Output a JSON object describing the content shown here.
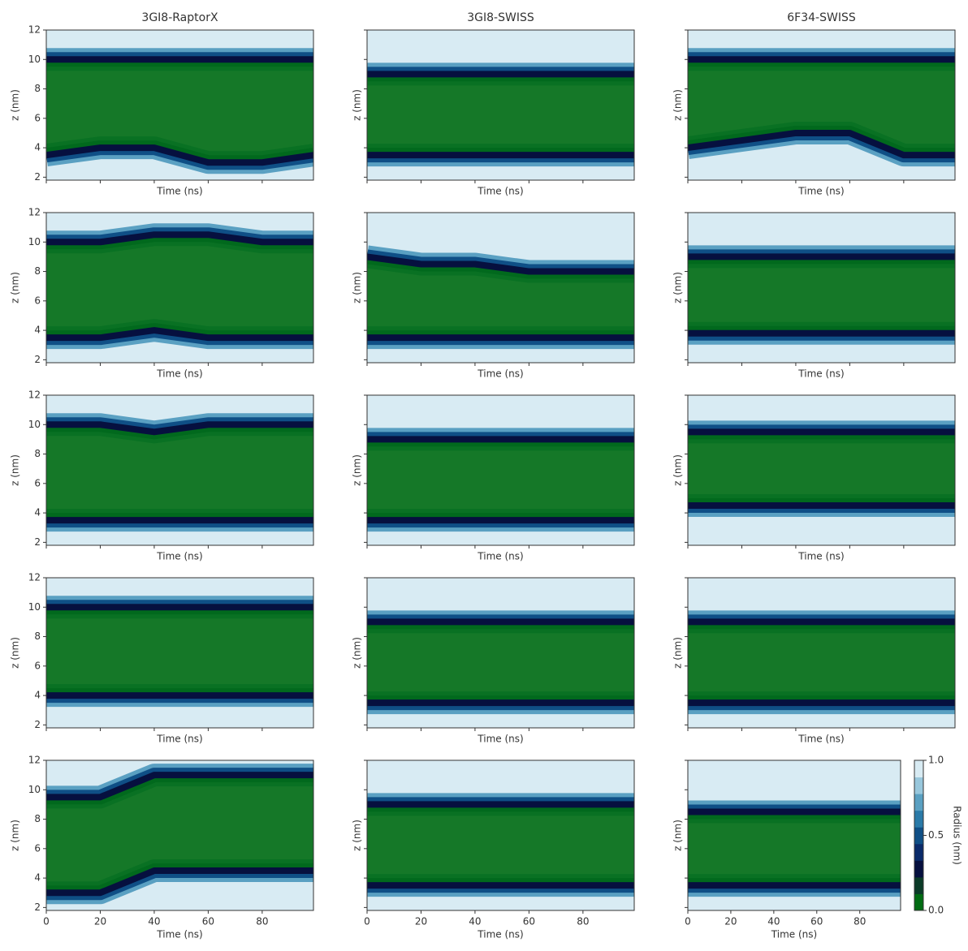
{
  "chart_data": [
    {
      "type": "contour",
      "title": "3GI8-RaptorX",
      "xlabel": "Time (ns)",
      "ylabel": "z (nm)",
      "x": [
        0,
        20,
        40,
        60,
        80,
        99
      ],
      "z_lower": [
        3.5,
        4,
        4,
        3,
        3,
        3.5
      ],
      "z_upper": [
        10,
        10,
        10,
        10,
        10,
        10
      ],
      "xlim": [
        0,
        99
      ],
      "ylim": [
        1.8,
        12
      ],
      "xticks": [
        0,
        20,
        40,
        60,
        80
      ],
      "yticks": [
        2,
        4,
        6,
        8,
        10,
        12
      ]
    },
    {
      "type": "contour",
      "title": "3GI8-SWISS",
      "xlabel": "Time (ns)",
      "ylabel": "z (nm)",
      "x": [
        0,
        20,
        40,
        60,
        80,
        99
      ],
      "z_lower": [
        3.5,
        3.5,
        3.5,
        3.5,
        3.5,
        3.5
      ],
      "z_upper": [
        9,
        9,
        9,
        9,
        9,
        9
      ],
      "xlim": [
        0,
        99
      ],
      "ylim": [
        1.8,
        12
      ],
      "xticks": [
        0,
        20,
        40,
        60,
        80
      ],
      "yticks": [
        2,
        4,
        6,
        8,
        10,
        12
      ]
    },
    {
      "type": "contour",
      "title": "6F34-SWISS",
      "xlabel": "Time (ns)",
      "ylabel": "z (nm)",
      "x": [
        0,
        20,
        40,
        60,
        80,
        99
      ],
      "z_lower": [
        4,
        4.5,
        5,
        5,
        3.5,
        3.5
      ],
      "z_upper": [
        10,
        10,
        10,
        10,
        10,
        10
      ],
      "xlim": [
        0,
        99
      ],
      "ylim": [
        1.8,
        12
      ],
      "xticks": [
        0,
        20,
        40,
        60,
        80
      ],
      "yticks": [
        2,
        4,
        6,
        8,
        10,
        12
      ]
    },
    {
      "type": "contour",
      "xlabel": "Time (ns)",
      "ylabel": "z (nm)",
      "x": [
        0,
        20,
        40,
        60,
        80,
        99
      ],
      "z_lower": [
        3.5,
        3.5,
        4,
        3.5,
        3.5,
        3.5
      ],
      "z_upper": [
        10,
        10,
        10.5,
        10.5,
        10,
        10
      ],
      "xlim": [
        0,
        99
      ],
      "ylim": [
        1.8,
        12
      ],
      "xticks": [
        0,
        20,
        40,
        60,
        80
      ],
      "yticks": [
        2,
        4,
        6,
        8,
        10,
        12
      ]
    },
    {
      "type": "contour",
      "xlabel": "Time (ns)",
      "ylabel": "z (nm)",
      "x": [
        0,
        20,
        40,
        60,
        80,
        99
      ],
      "z_lower": [
        3.5,
        3.5,
        3.5,
        3.5,
        3.5,
        3.5
      ],
      "z_upper": [
        9,
        8.5,
        8.5,
        8,
        8,
        8
      ],
      "xlim": [
        0,
        99
      ],
      "ylim": [
        1.8,
        12
      ],
      "xticks": [
        0,
        20,
        40,
        60,
        80
      ],
      "yticks": [
        2,
        4,
        6,
        8,
        10,
        12
      ]
    },
    {
      "type": "contour",
      "xlabel": "Time (ns)",
      "ylabel": "z (nm)",
      "x": [
        0,
        20,
        40,
        60,
        80,
        99
      ],
      "z_lower": [
        3.8,
        3.8,
        3.8,
        3.8,
        3.8,
        3.8
      ],
      "z_upper": [
        9,
        9,
        9,
        9,
        9,
        9
      ],
      "xlim": [
        0,
        99
      ],
      "ylim": [
        1.8,
        12
      ],
      "xticks": [
        0,
        20,
        40,
        60,
        80
      ],
      "yticks": [
        2,
        4,
        6,
        8,
        10,
        12
      ]
    },
    {
      "type": "contour",
      "xlabel": "Time (ns)",
      "ylabel": "z (nm)",
      "x": [
        0,
        20,
        40,
        60,
        80,
        99
      ],
      "z_lower": [
        3.5,
        3.5,
        3.5,
        3.5,
        3.5,
        3.5
      ],
      "z_upper": [
        10,
        10,
        9.5,
        10,
        10,
        10
      ],
      "xlim": [
        0,
        99
      ],
      "ylim": [
        1.8,
        12
      ],
      "xticks": [
        0,
        20,
        40,
        60,
        80
      ],
      "yticks": [
        2,
        4,
        6,
        8,
        10,
        12
      ]
    },
    {
      "type": "contour",
      "xlabel": "Time (ns)",
      "ylabel": "z (nm)",
      "x": [
        0,
        20,
        40,
        60,
        80,
        99
      ],
      "z_lower": [
        3.5,
        3.5,
        3.5,
        3.5,
        3.5,
        3.5
      ],
      "z_upper": [
        9,
        9,
        9,
        9,
        9,
        9
      ],
      "xlim": [
        0,
        99
      ],
      "ylim": [
        1.8,
        12
      ],
      "xticks": [
        0,
        20,
        40,
        60,
        80
      ],
      "yticks": [
        2,
        4,
        6,
        8,
        10,
        12
      ]
    },
    {
      "type": "contour",
      "xlabel": "Time (ns)",
      "ylabel": "z (nm)",
      "x": [
        0,
        20,
        40,
        60,
        80,
        99
      ],
      "z_lower": [
        4.5,
        4.5,
        4.5,
        4.5,
        4.5,
        4.5
      ],
      "z_upper": [
        9.5,
        9.5,
        9.5,
        9.5,
        9.5,
        9.5
      ],
      "xlim": [
        0,
        99
      ],
      "ylim": [
        1.8,
        12
      ],
      "xticks": [
        0,
        20,
        40,
        60,
        80
      ],
      "yticks": [
        2,
        4,
        6,
        8,
        10,
        12
      ]
    },
    {
      "type": "contour",
      "xlabel": "Time (ns)",
      "ylabel": "z (nm)",
      "x": [
        0,
        20,
        40,
        60,
        80,
        99
      ],
      "z_lower": [
        4,
        4,
        4,
        4,
        4,
        4
      ],
      "z_upper": [
        10,
        10,
        10,
        10,
        10,
        10
      ],
      "xlim": [
        0,
        99
      ],
      "ylim": [
        1.8,
        12
      ],
      "xticks": [
        0,
        20,
        40,
        60,
        80
      ],
      "yticks": [
        2,
        4,
        6,
        8,
        10,
        12
      ]
    },
    {
      "type": "contour",
      "xlabel": "Time (ns)",
      "ylabel": "z (nm)",
      "x": [
        0,
        20,
        40,
        60,
        80,
        99
      ],
      "z_lower": [
        3.5,
        3.5,
        3.5,
        3.5,
        3.5,
        3.5
      ],
      "z_upper": [
        9,
        9,
        9,
        9,
        9,
        9
      ],
      "xlim": [
        0,
        99
      ],
      "ylim": [
        1.8,
        12
      ],
      "xticks": [
        0,
        20,
        40,
        60,
        80
      ],
      "yticks": [
        2,
        4,
        6,
        8,
        10,
        12
      ]
    },
    {
      "type": "contour",
      "xlabel": "Time (ns)",
      "ylabel": "z (nm)",
      "x": [
        0,
        20,
        40,
        60,
        80,
        99
      ],
      "z_lower": [
        3.5,
        3.5,
        3.5,
        3.5,
        3.5,
        3.5
      ],
      "z_upper": [
        9,
        9,
        9,
        9,
        9,
        9
      ],
      "xlim": [
        0,
        99
      ],
      "ylim": [
        1.8,
        12
      ],
      "xticks": [
        0,
        20,
        40,
        60,
        80
      ],
      "yticks": [
        2,
        4,
        6,
        8,
        10,
        12
      ]
    },
    {
      "type": "contour",
      "xlabel": "Time (ns)",
      "ylabel": "z (nm)",
      "x": [
        0,
        20,
        40,
        60,
        80,
        99
      ],
      "z_lower": [
        3,
        3,
        4.5,
        4.5,
        4.5,
        4.5
      ],
      "z_upper": [
        9.5,
        9.5,
        11,
        11,
        11,
        11
      ],
      "xlim": [
        0,
        99
      ],
      "ylim": [
        1.8,
        12
      ],
      "xticks": [
        0,
        20,
        40,
        60,
        80
      ],
      "yticks": [
        2,
        4,
        6,
        8,
        10,
        12
      ]
    },
    {
      "type": "contour",
      "xlabel": "Time (ns)",
      "ylabel": "z (nm)",
      "x": [
        0,
        20,
        40,
        60,
        80,
        99
      ],
      "z_lower": [
        3.5,
        3.5,
        3.5,
        3.5,
        3.5,
        3.5
      ],
      "z_upper": [
        9,
        9,
        9,
        9,
        9,
        9
      ],
      "xlim": [
        0,
        99
      ],
      "ylim": [
        1.8,
        12
      ],
      "xticks": [
        0,
        20,
        40,
        60,
        80
      ],
      "yticks": [
        2,
        4,
        6,
        8,
        10,
        12
      ]
    },
    {
      "type": "contour",
      "xlabel": "Time (ns)",
      "ylabel": "z (nm)",
      "x": [
        0,
        20,
        40,
        60,
        80,
        99
      ],
      "z_lower": [
        3.5,
        3.5,
        3.5,
        3.5,
        3.5,
        3.5
      ],
      "z_upper": [
        8.5,
        8.5,
        8.5,
        8.5,
        8.5,
        8.5
      ],
      "xlim": [
        0,
        99
      ],
      "ylim": [
        1.8,
        12
      ],
      "xticks": [
        0,
        20,
        40,
        60,
        80
      ],
      "yticks": [
        2,
        4,
        6,
        8,
        10,
        12
      ]
    }
  ],
  "colorbar": {
    "label": "Radius (nm)",
    "lim": [
      0,
      1
    ],
    "ticks": [
      {
        "value": 0,
        "label": "0.0"
      },
      {
        "value": 0.5,
        "label": "0.5"
      },
      {
        "value": 1,
        "label": "1.0"
      }
    ],
    "colors": [
      "#006b12",
      "#0b3b28",
      "#06103f",
      "#0a2a6a",
      "#0f4f86",
      "#2a7aa8",
      "#5aa0c2",
      "#98c7dc",
      "#d8ebf3"
    ]
  }
}
